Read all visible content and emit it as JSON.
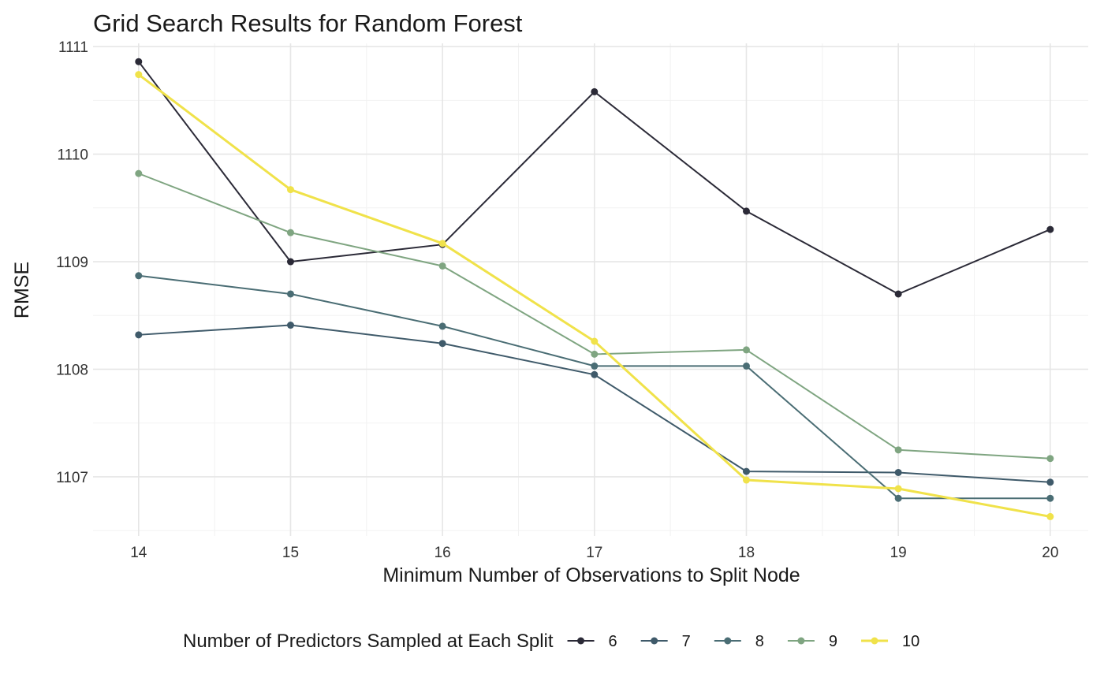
{
  "chart_data": {
    "type": "line",
    "title": "Grid Search Results for Random Forest",
    "xlabel": "Minimum Number of Observations to Split Node",
    "ylabel": "RMSE",
    "x": [
      14,
      15,
      16,
      17,
      18,
      19,
      20
    ],
    "xlim": [
      13.7,
      20.25
    ],
    "ylim": [
      1106.45,
      1111.03
    ],
    "yticks": [
      1107,
      1108,
      1109,
      1110,
      1111
    ],
    "grid": true,
    "legend": {
      "title": "Number of Predictors Sampled at Each Split",
      "position": "bottom"
    },
    "series": [
      {
        "name": "6",
        "color": "#2b2a37",
        "values": [
          1110.86,
          1109.0,
          1109.16,
          1110.58,
          1109.47,
          1108.7,
          1109.3
        ]
      },
      {
        "name": "7",
        "color": "#3f5a6a",
        "values": [
          1108.32,
          1108.41,
          1108.24,
          1107.95,
          1107.05,
          1107.04,
          1106.95
        ]
      },
      {
        "name": "8",
        "color": "#4a6d74",
        "values": [
          1108.87,
          1108.7,
          1108.4,
          1108.03,
          1108.03,
          1106.8,
          1106.8
        ]
      },
      {
        "name": "9",
        "color": "#7fa581",
        "values": [
          1109.82,
          1109.27,
          1108.96,
          1108.14,
          1108.18,
          1107.25,
          1107.17
        ]
      },
      {
        "name": "10",
        "color": "#f0e24a",
        "values": [
          1110.74,
          1109.67,
          1109.17,
          1108.26,
          1106.97,
          1106.89,
          1106.63
        ]
      }
    ]
  }
}
